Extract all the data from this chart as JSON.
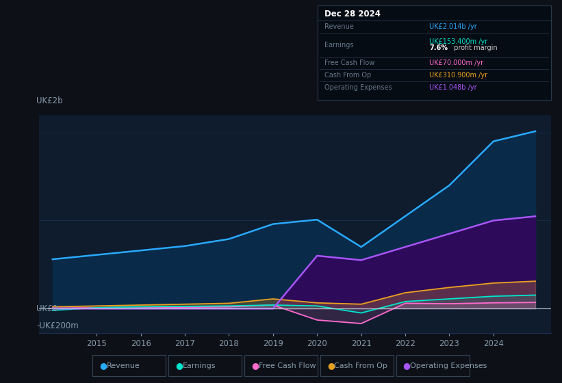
{
  "bg_color": "#0d1117",
  "plot_bg_color": "#0e1c2e",
  "grid_color": "#1e3050",
  "text_color": "#8899aa",
  "years": [
    2014,
    2015,
    2016,
    2017,
    2018,
    2019,
    2020,
    2021,
    2022,
    2023,
    2024,
    2024.95
  ],
  "revenue": [
    560,
    610,
    660,
    710,
    790,
    960,
    1010,
    700,
    1050,
    1400,
    1900,
    2014
  ],
  "earnings": [
    -20,
    10,
    20,
    25,
    30,
    40,
    30,
    -50,
    80,
    110,
    140,
    153
  ],
  "free_cash_flow": [
    5,
    10,
    15,
    15,
    20,
    40,
    -130,
    -170,
    60,
    55,
    65,
    70
  ],
  "cash_from_op": [
    20,
    30,
    40,
    50,
    60,
    110,
    65,
    50,
    180,
    240,
    290,
    311
  ],
  "operating_expenses": [
    0,
    0,
    0,
    0,
    0,
    0,
    600,
    550,
    700,
    850,
    1000,
    1048
  ],
  "revenue_color": "#29aaff",
  "revenue_fill": "#0a2a4a",
  "earnings_color": "#00e5cc",
  "fcf_color": "#ff6bcd",
  "cfo_color": "#e8a020",
  "opex_color": "#a855f7",
  "opex_fill": "#2d0a5a",
  "ylim_min": -280,
  "ylim_max": 2200,
  "xlim_min": 2013.7,
  "xlim_max": 2025.3,
  "xticks": [
    2015,
    2016,
    2017,
    2018,
    2019,
    2020,
    2021,
    2022,
    2023,
    2024
  ],
  "legend_items": [
    {
      "label": "Revenue",
      "color": "#29aaff"
    },
    {
      "label": "Earnings",
      "color": "#00e5cc"
    },
    {
      "label": "Free Cash Flow",
      "color": "#ff6bcd"
    },
    {
      "label": "Cash From Op",
      "color": "#e8a020"
    },
    {
      "label": "Operating Expenses",
      "color": "#a855f7"
    }
  ],
  "tooltip": {
    "title": "Dec 28 2024",
    "title_color": "#ffffff",
    "bg": "#060c14",
    "border": "#2a3a50",
    "rows": [
      {
        "label": "Revenue",
        "label_color": "#667788",
        "value": "UK£2.014b /yr",
        "value_color": "#29aaff",
        "sub": null
      },
      {
        "label": "Earnings",
        "label_color": "#667788",
        "value": "UK£153.400m /yr",
        "value_color": "#00e5cc",
        "sub": "7.6% profit margin"
      },
      {
        "label": "Free Cash Flow",
        "label_color": "#667788",
        "value": "UK£70.000m /yr",
        "value_color": "#ff6bcd",
        "sub": null
      },
      {
        "label": "Cash From Op",
        "label_color": "#667788",
        "value": "UK£310.900m /yr",
        "value_color": "#e8a020",
        "sub": null
      },
      {
        "label": "Operating Expenses",
        "label_color": "#667788",
        "value": "UK£1.048b /yr",
        "value_color": "#a855f7",
        "sub": null
      }
    ]
  }
}
